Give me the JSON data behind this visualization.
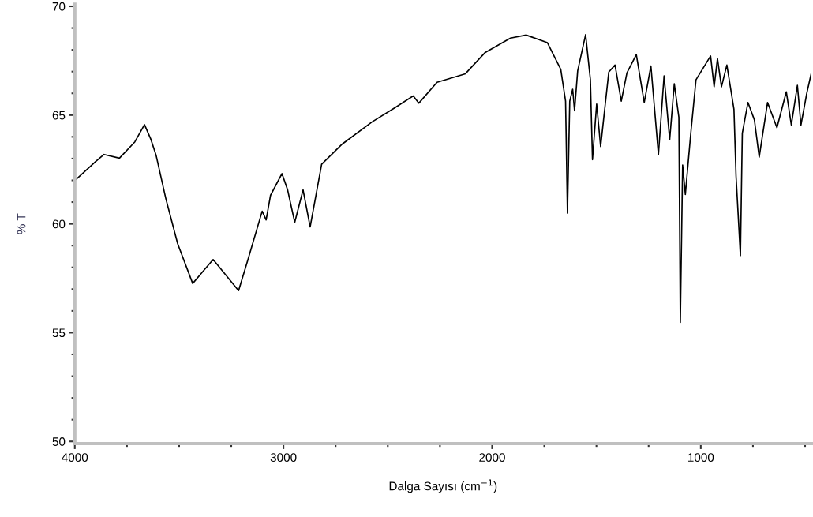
{
  "chart_data": {
    "type": "line",
    "xlabel": "Dalga Sayısı (cm$^{−1}$)",
    "ylabel": "% T",
    "xlim": [
      4000,
      470
    ],
    "ylim": [
      49.9,
      70.1
    ],
    "xticks": [
      4000,
      {
        "value": 3750,
        "label": null
      },
      {
        "value": 3500,
        "label": null
      },
      {
        "value": 3250,
        "label": null
      },
      3000,
      {
        "value": 2750,
        "label": null
      },
      {
        "value": 2500,
        "label": null
      },
      {
        "value": 2250,
        "label": null
      },
      2000,
      {
        "value": 1750,
        "label": null
      },
      {
        "value": 1500,
        "label": null
      },
      {
        "value": 1250,
        "label": null
      },
      1000,
      {
        "value": 750,
        "label": null
      },
      {
        "value": 500,
        "label": null
      }
    ],
    "yticks": [
      50,
      {
        "value": 51,
        "label": null
      },
      {
        "value": 52,
        "label": null
      },
      {
        "value": 53,
        "label": null
      },
      {
        "value": 54,
        "label": null
      },
      55,
      {
        "value": 56,
        "label": null
      },
      {
        "value": 57,
        "label": null
      },
      {
        "value": 58,
        "label": null
      },
      {
        "value": 59,
        "label": null
      },
      60,
      {
        "value": 61,
        "label": null
      },
      {
        "value": 62,
        "label": null
      },
      {
        "value": 63,
        "label": null
      },
      {
        "value": 64,
        "label": null
      },
      65,
      {
        "value": 66,
        "label": null
      },
      {
        "value": 67,
        "label": null
      },
      {
        "value": 68,
        "label": null
      },
      {
        "value": 69,
        "label": null
      },
      70
    ],
    "grid": false,
    "series": [
      {
        "color": "#000000",
        "x": [
          3993,
          3901,
          3860,
          3786,
          3712,
          3666,
          3636,
          3610,
          3564,
          3507,
          3435,
          3337,
          3215,
          3170,
          3102,
          3083,
          3062,
          3007,
          2980,
          2946,
          2906,
          2872,
          2817,
          2722,
          2575,
          2466,
          2378,
          2351,
          2264,
          2128,
          2033,
          1912,
          1837,
          1735,
          1671,
          1648,
          1639,
          1628,
          1614,
          1605,
          1590,
          1552,
          1529,
          1519,
          1499,
          1480,
          1441,
          1411,
          1381,
          1354,
          1309,
          1271,
          1239,
          1203,
          1176,
          1149,
          1127,
          1105,
          1098,
          1087,
          1074,
          1048,
          1023,
          953,
          936,
          920,
          901,
          875,
          841,
          831,
          810,
          801,
          774,
          743,
          720,
          680,
          635,
          590,
          566,
          537,
          520,
          492,
          470
        ],
        "values": [
          62.05,
          62.86,
          63.19,
          63.02,
          63.77,
          64.56,
          63.9,
          63.14,
          61.17,
          59.09,
          57.26,
          58.36,
          56.93,
          58.36,
          60.58,
          60.18,
          61.31,
          62.31,
          61.56,
          60.07,
          61.56,
          59.86,
          62.74,
          63.64,
          64.69,
          65.34,
          65.88,
          65.55,
          66.51,
          66.9,
          67.88,
          68.54,
          68.68,
          68.33,
          67.1,
          65.64,
          60.49,
          65.64,
          66.19,
          65.2,
          67.04,
          68.7,
          66.62,
          62.95,
          65.51,
          63.55,
          66.98,
          67.3,
          65.64,
          66.94,
          67.78,
          65.58,
          67.26,
          63.19,
          66.8,
          63.87,
          66.44,
          64.9,
          55.47,
          62.7,
          61.35,
          64.16,
          66.62,
          67.72,
          66.3,
          67.6,
          66.3,
          67.3,
          65.27,
          62.2,
          58.54,
          64.16,
          65.58,
          64.78,
          63.07,
          65.58,
          64.42,
          66.07,
          64.54,
          66.37,
          64.54,
          66.0,
          66.94
        ]
      }
    ]
  }
}
